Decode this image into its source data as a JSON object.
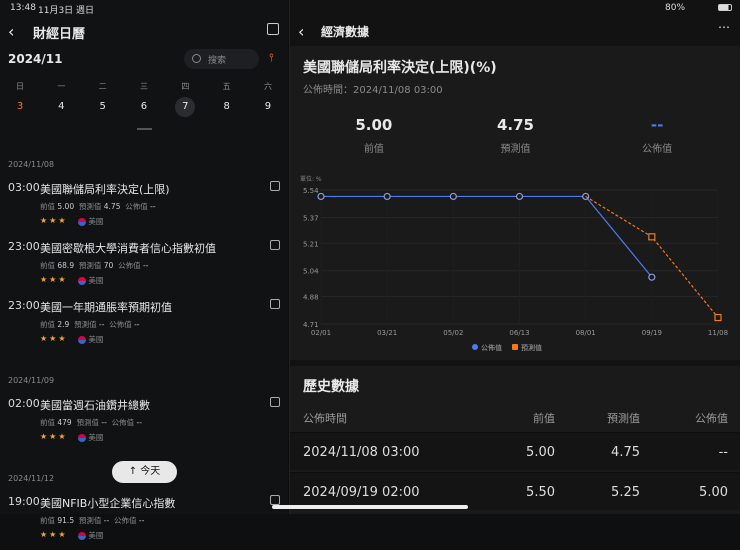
{
  "status": {
    "time": "13:48",
    "date": "11月3日 週日",
    "battery": "80%"
  },
  "left": {
    "title": "財經日曆",
    "month": "2024/11",
    "search_placeholder": "搜索",
    "weekdays": [
      "日",
      "一",
      "二",
      "三",
      "四",
      "五",
      "六"
    ],
    "days": [
      "3",
      "4",
      "5",
      "6",
      "7",
      "8",
      "9"
    ],
    "selected_day": "7",
    "groups": [
      {
        "date": "2024/11/08",
        "events": [
          {
            "time": "03:00",
            "title": "美國聯儲局利率決定(上限)",
            "prev": "5.00",
            "forecast": "4.75",
            "actual": "--",
            "country": "美國",
            "stars": 3
          },
          {
            "time": "23:00",
            "title": "美國密歇根大學消費者信心指數初值",
            "prev": "68.9",
            "forecast": "70",
            "actual": "--",
            "country": "美國",
            "stars": 3
          },
          {
            "time": "23:00",
            "title": "美國一年期通脹率預期初值",
            "prev": "2.9",
            "forecast": "--",
            "actual": "--",
            "country": "美國",
            "stars": 3
          }
        ]
      },
      {
        "date": "2024/11/09",
        "events": [
          {
            "time": "02:00",
            "title": "美國當週石油鑽井總數",
            "prev": "479",
            "forecast": "--",
            "actual": "--",
            "country": "美國",
            "stars": 3
          }
        ]
      },
      {
        "date": "2024/11/12",
        "events": [
          {
            "time": "19:00",
            "title": "美國NFIB小型企業信心指數",
            "prev": "91.5",
            "forecast": "--",
            "actual": "--",
            "country": "美國",
            "stars": 3
          }
        ]
      }
    ],
    "labels": {
      "prev": "前值",
      "forecast": "預測值",
      "actual": "公佈值"
    },
    "today_button": "今天"
  },
  "right": {
    "title": "經濟數據",
    "indicator": "美國聯儲局利率決定(上限)(%)",
    "publish_time": "公佈時間：2024/11/08 03:00",
    "summary": [
      {
        "value": "5.00",
        "label": "前值"
      },
      {
        "value": "4.75",
        "label": "預測值"
      },
      {
        "value": "--",
        "label": "公佈值"
      }
    ],
    "history": {
      "title": "歷史數據",
      "headers": [
        "公佈時間",
        "前值",
        "預測值",
        "公佈值"
      ],
      "rows": [
        [
          "2024/11/08 03:00",
          "5.00",
          "4.75",
          "--"
        ],
        [
          "2024/09/19 02:00",
          "5.50",
          "5.25",
          "5.00"
        ]
      ]
    }
  },
  "chart_data": {
    "type": "line",
    "unit_label": "單位: %",
    "categories": [
      "02/01",
      "03/21",
      "05/02",
      "06/13",
      "08/01",
      "09/19",
      "11/08"
    ],
    "yticks": [
      "5.54",
      "5.37",
      "5.21",
      "5.04",
      "4.88",
      "4.71"
    ],
    "ylim": [
      4.71,
      5.54
    ],
    "grid": true,
    "legend": "bottom",
    "series": [
      {
        "name": "公佈值",
        "color": "#4a7cf0",
        "values": [
          5.5,
          5.5,
          5.5,
          5.5,
          5.5,
          5.0,
          null
        ]
      },
      {
        "name": "預測值",
        "color": "#f07a1a",
        "dashed": true,
        "values": [
          null,
          null,
          null,
          null,
          5.5,
          5.25,
          4.75
        ]
      }
    ]
  }
}
